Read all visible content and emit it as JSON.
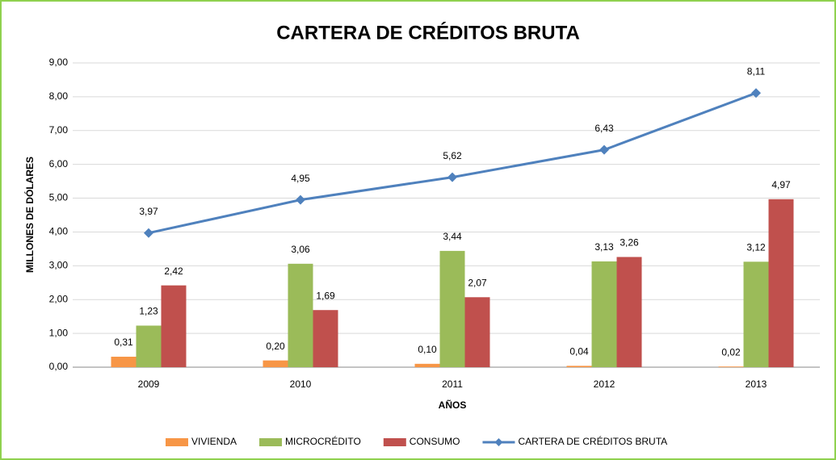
{
  "chart_data": {
    "type": "bar",
    "title": "CARTERA DE CRÉDITOS BRUTA",
    "y_label": "MILLONES DE DÓLARES",
    "x_label": "AÑOS",
    "categories": [
      "2009",
      "2010",
      "2011",
      "2012",
      "2013"
    ],
    "series": [
      {
        "name": "VIVIENDA",
        "color": "#f79646",
        "values": [
          0.31,
          0.2,
          0.1,
          0.04,
          0.02
        ],
        "value_labels": [
          "0,31",
          "0,20",
          "0,10",
          "0,04",
          "0,02"
        ]
      },
      {
        "name": "MICROCRÉDITO",
        "color": "#9bbb59",
        "values": [
          1.23,
          3.06,
          3.44,
          3.13,
          3.12
        ],
        "value_labels": [
          "1,23",
          "3,06",
          "3,44",
          "3,13",
          "3,12"
        ]
      },
      {
        "name": "CONSUMO",
        "color": "#c0504d",
        "values": [
          2.42,
          1.69,
          2.07,
          3.26,
          4.97
        ],
        "value_labels": [
          "2,42",
          "1,69",
          "2,07",
          "3,26",
          "4,97"
        ]
      },
      {
        "name": "CARTERA DE CRÉDITOS BRUTA",
        "color": "#4f81bd",
        "type": "line",
        "values": [
          3.97,
          4.95,
          5.62,
          6.43,
          8.11
        ],
        "value_labels": [
          "3,97",
          "4,95",
          "5,62",
          "6,43",
          "8,11"
        ]
      }
    ],
    "ylim": [
      0,
      9
    ],
    "yticks": [
      {
        "value": 0,
        "label": "0,00"
      },
      {
        "value": 1,
        "label": "1,00"
      },
      {
        "value": 2,
        "label": "2,00"
      },
      {
        "value": 3,
        "label": "3,00"
      },
      {
        "value": 4,
        "label": "4,00"
      },
      {
        "value": 5,
        "label": "5,00"
      },
      {
        "value": 6,
        "label": "6,00"
      },
      {
        "value": 7,
        "label": "7,00"
      },
      {
        "value": 8,
        "label": "8,00"
      },
      {
        "value": 9,
        "label": "9,00"
      }
    ],
    "grid": true,
    "legend": "bottom"
  }
}
